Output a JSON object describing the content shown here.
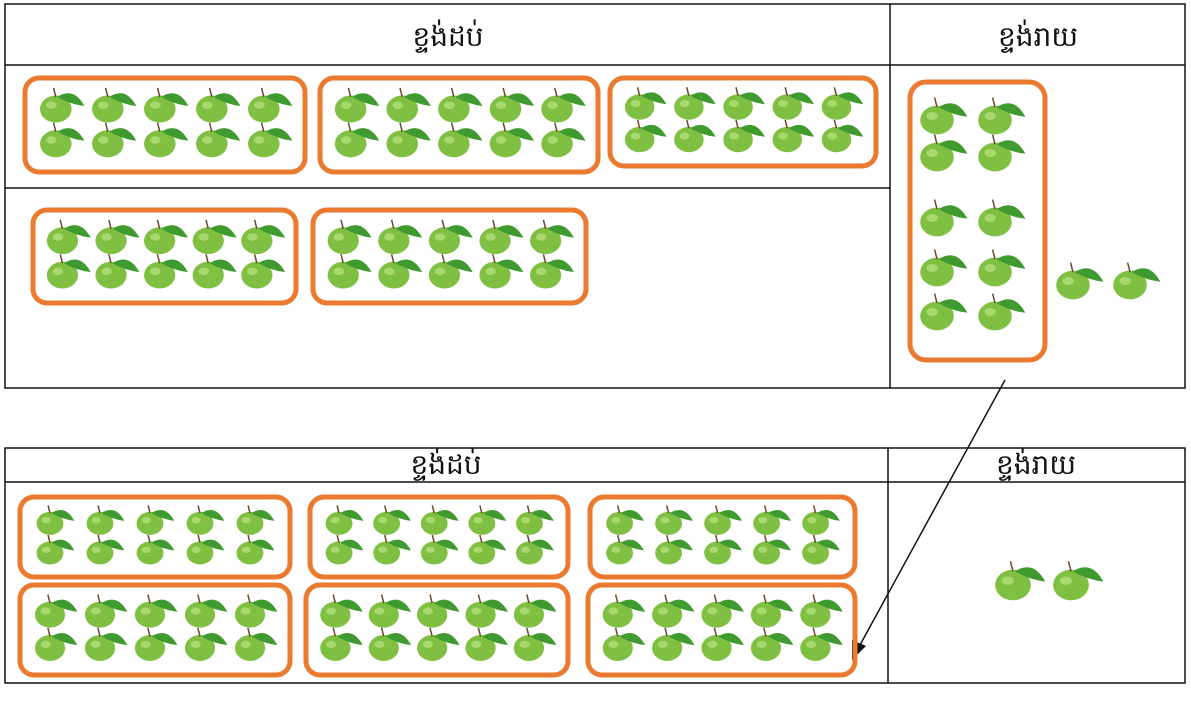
{
  "table_top": {
    "header": {
      "tens": "ខ្ទង់ដប់",
      "ones": "ខ្ទង់រាយ"
    }
  },
  "table_bottom": {
    "header": {
      "tens": "ខ្ទង់ដប់",
      "ones": "ខ្ទង់រាយ"
    }
  }
}
